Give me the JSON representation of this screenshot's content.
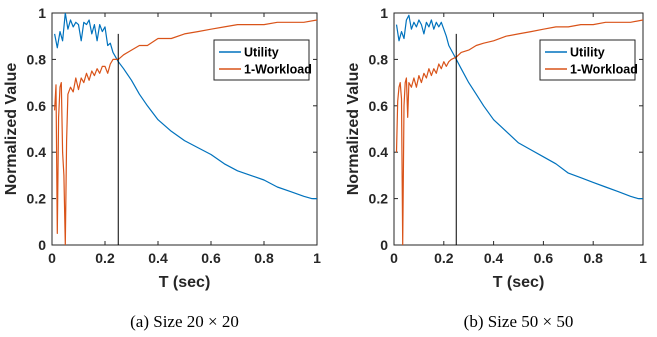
{
  "chart_data": [
    {
      "type": "line",
      "xlabel": "T (sec)",
      "ylabel": "Normalized Value",
      "caption": "(a)  Size 20 × 20",
      "xlim": [
        0,
        1
      ],
      "ylim": [
        0,
        1
      ],
      "xticks": [
        "0",
        "0.2",
        "0.4",
        "0.6",
        "0.8",
        "1"
      ],
      "yticks": [
        "0",
        "0.2",
        "0.4",
        "0.6",
        "0.8",
        "1"
      ],
      "grid": false,
      "legend_position": "top-right",
      "crossover_x": 0.25,
      "series": [
        {
          "name": "Utility",
          "color": "#0072BD",
          "points": [
            [
              0.01,
              0.91
            ],
            [
              0.02,
              0.85
            ],
            [
              0.03,
              0.92
            ],
            [
              0.04,
              0.88
            ],
            [
              0.05,
              1.0
            ],
            [
              0.06,
              0.93
            ],
            [
              0.07,
              0.97
            ],
            [
              0.08,
              0.94
            ],
            [
              0.09,
              0.96
            ],
            [
              0.1,
              0.95
            ],
            [
              0.11,
              0.88
            ],
            [
              0.12,
              0.96
            ],
            [
              0.13,
              0.95
            ],
            [
              0.14,
              0.97
            ],
            [
              0.15,
              0.91
            ],
            [
              0.16,
              0.95
            ],
            [
              0.17,
              0.88
            ],
            [
              0.18,
              0.95
            ],
            [
              0.19,
              0.92
            ],
            [
              0.2,
              0.94
            ],
            [
              0.21,
              0.86
            ],
            [
              0.22,
              0.87
            ],
            [
              0.23,
              0.83
            ],
            [
              0.25,
              0.79
            ],
            [
              0.27,
              0.76
            ],
            [
              0.3,
              0.71
            ],
            [
              0.33,
              0.65
            ],
            [
              0.36,
              0.6
            ],
            [
              0.4,
              0.54
            ],
            [
              0.45,
              0.49
            ],
            [
              0.5,
              0.45
            ],
            [
              0.55,
              0.42
            ],
            [
              0.6,
              0.39
            ],
            [
              0.65,
              0.35
            ],
            [
              0.7,
              0.32
            ],
            [
              0.75,
              0.3
            ],
            [
              0.8,
              0.28
            ],
            [
              0.85,
              0.25
            ],
            [
              0.9,
              0.23
            ],
            [
              0.95,
              0.21
            ],
            [
              0.98,
              0.2
            ],
            [
              1.0,
              0.2
            ]
          ]
        },
        {
          "name": "1-Workload",
          "color": "#D95319",
          "points": [
            [
              0.01,
              0.58
            ],
            [
              0.015,
              0.69
            ],
            [
              0.02,
              0.05
            ],
            [
              0.025,
              0.55
            ],
            [
              0.03,
              0.68
            ],
            [
              0.035,
              0.7
            ],
            [
              0.04,
              0.4
            ],
            [
              0.045,
              0.3
            ],
            [
              0.05,
              0.0
            ],
            [
              0.055,
              0.45
            ],
            [
              0.06,
              0.65
            ],
            [
              0.07,
              0.68
            ],
            [
              0.08,
              0.66
            ],
            [
              0.09,
              0.72
            ],
            [
              0.1,
              0.67
            ],
            [
              0.11,
              0.72
            ],
            [
              0.12,
              0.7
            ],
            [
              0.13,
              0.74
            ],
            [
              0.14,
              0.71
            ],
            [
              0.15,
              0.75
            ],
            [
              0.16,
              0.73
            ],
            [
              0.17,
              0.76
            ],
            [
              0.18,
              0.74
            ],
            [
              0.19,
              0.77
            ],
            [
              0.2,
              0.77
            ],
            [
              0.21,
              0.74
            ],
            [
              0.22,
              0.78
            ],
            [
              0.23,
              0.8
            ],
            [
              0.25,
              0.8
            ],
            [
              0.27,
              0.82
            ],
            [
              0.3,
              0.84
            ],
            [
              0.33,
              0.86
            ],
            [
              0.36,
              0.86
            ],
            [
              0.4,
              0.89
            ],
            [
              0.45,
              0.89
            ],
            [
              0.5,
              0.91
            ],
            [
              0.55,
              0.92
            ],
            [
              0.6,
              0.93
            ],
            [
              0.65,
              0.94
            ],
            [
              0.7,
              0.95
            ],
            [
              0.75,
              0.95
            ],
            [
              0.8,
              0.95
            ],
            [
              0.85,
              0.96
            ],
            [
              0.9,
              0.96
            ],
            [
              0.95,
              0.96
            ],
            [
              1.0,
              0.97
            ]
          ]
        }
      ]
    },
    {
      "type": "line",
      "xlabel": "T (sec)",
      "ylabel": "Normalized Value",
      "caption": "(b)  Size 50 × 50",
      "xlim": [
        0,
        1
      ],
      "ylim": [
        0,
        1
      ],
      "xticks": [
        "0",
        "0.2",
        "0.4",
        "0.6",
        "0.8",
        "1"
      ],
      "yticks": [
        "0",
        "0.2",
        "0.4",
        "0.6",
        "0.8",
        "1"
      ],
      "grid": false,
      "legend_position": "top-right",
      "crossover_x": 0.25,
      "series": [
        {
          "name": "Utility",
          "color": "#0072BD",
          "points": [
            [
              0.01,
              0.95
            ],
            [
              0.02,
              0.88
            ],
            [
              0.03,
              0.92
            ],
            [
              0.04,
              0.89
            ],
            [
              0.05,
              0.97
            ],
            [
              0.06,
              0.99
            ],
            [
              0.07,
              0.93
            ],
            [
              0.08,
              0.96
            ],
            [
              0.09,
              0.94
            ],
            [
              0.1,
              0.97
            ],
            [
              0.11,
              0.95
            ],
            [
              0.12,
              0.91
            ],
            [
              0.13,
              0.96
            ],
            [
              0.14,
              0.94
            ],
            [
              0.15,
              0.97
            ],
            [
              0.16,
              0.93
            ],
            [
              0.17,
              0.96
            ],
            [
              0.18,
              0.94
            ],
            [
              0.19,
              0.96
            ],
            [
              0.2,
              0.93
            ],
            [
              0.21,
              0.9
            ],
            [
              0.22,
              0.86
            ],
            [
              0.23,
              0.84
            ],
            [
              0.25,
              0.8
            ],
            [
              0.27,
              0.76
            ],
            [
              0.3,
              0.7
            ],
            [
              0.33,
              0.65
            ],
            [
              0.36,
              0.6
            ],
            [
              0.4,
              0.54
            ],
            [
              0.45,
              0.49
            ],
            [
              0.5,
              0.44
            ],
            [
              0.55,
              0.41
            ],
            [
              0.6,
              0.38
            ],
            [
              0.65,
              0.35
            ],
            [
              0.7,
              0.31
            ],
            [
              0.75,
              0.29
            ],
            [
              0.8,
              0.27
            ],
            [
              0.85,
              0.25
            ],
            [
              0.9,
              0.23
            ],
            [
              0.95,
              0.21
            ],
            [
              0.98,
              0.2
            ],
            [
              1.0,
              0.2
            ]
          ]
        },
        {
          "name": "1-Workload",
          "color": "#D95319",
          "points": [
            [
              0.01,
              0.4
            ],
            [
              0.015,
              0.62
            ],
            [
              0.02,
              0.68
            ],
            [
              0.025,
              0.7
            ],
            [
              0.03,
              0.63
            ],
            [
              0.035,
              0.0
            ],
            [
              0.04,
              0.6
            ],
            [
              0.045,
              0.7
            ],
            [
              0.05,
              0.72
            ],
            [
              0.055,
              0.55
            ],
            [
              0.06,
              0.7
            ],
            [
              0.07,
              0.68
            ],
            [
              0.08,
              0.72
            ],
            [
              0.09,
              0.68
            ],
            [
              0.1,
              0.73
            ],
            [
              0.11,
              0.7
            ],
            [
              0.12,
              0.74
            ],
            [
              0.13,
              0.72
            ],
            [
              0.14,
              0.76
            ],
            [
              0.15,
              0.73
            ],
            [
              0.16,
              0.76
            ],
            [
              0.17,
              0.74
            ],
            [
              0.18,
              0.78
            ],
            [
              0.19,
              0.76
            ],
            [
              0.2,
              0.79
            ],
            [
              0.21,
              0.77
            ],
            [
              0.22,
              0.79
            ],
            [
              0.23,
              0.8
            ],
            [
              0.25,
              0.81
            ],
            [
              0.27,
              0.83
            ],
            [
              0.3,
              0.84
            ],
            [
              0.33,
              0.86
            ],
            [
              0.36,
              0.87
            ],
            [
              0.4,
              0.88
            ],
            [
              0.45,
              0.9
            ],
            [
              0.5,
              0.91
            ],
            [
              0.55,
              0.92
            ],
            [
              0.6,
              0.93
            ],
            [
              0.65,
              0.94
            ],
            [
              0.7,
              0.94
            ],
            [
              0.75,
              0.95
            ],
            [
              0.8,
              0.95
            ],
            [
              0.85,
              0.96
            ],
            [
              0.9,
              0.96
            ],
            [
              0.95,
              0.96
            ],
            [
              1.0,
              0.97
            ]
          ]
        }
      ]
    }
  ]
}
